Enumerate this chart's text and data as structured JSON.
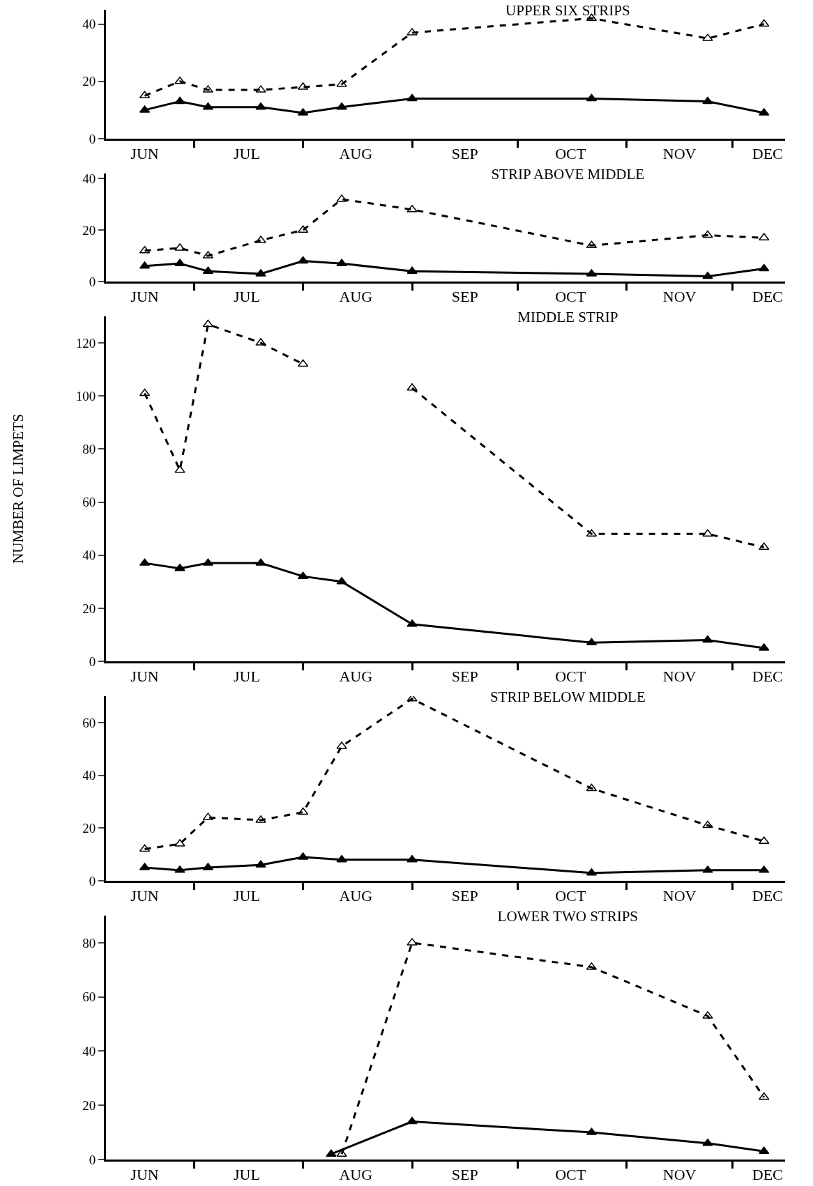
{
  "chart_data": [
    {
      "type": "line",
      "title": "UPPER SIX STRIPS",
      "x": [
        "--06-17",
        "--06-27",
        "--07-05",
        "--07-20",
        "--08-01",
        "--08-12",
        "--09-01",
        "--10-22",
        "--11-24",
        "--12-10"
      ],
      "series": [
        {
          "color": "#000000",
          "line_style": "dashed",
          "values": [
            15,
            20,
            17,
            17,
            18,
            19,
            37,
            42,
            35,
            40
          ]
        },
        {
          "color": "#000000",
          "line_style": "solid",
          "values": [
            10,
            13,
            11,
            11,
            9,
            11,
            14,
            14,
            13,
            9
          ]
        }
      ],
      "marker": "triangle",
      "ylim": [
        0,
        45
      ],
      "yticks": [
        0,
        20,
        40
      ],
      "xlim": [
        "--06-06",
        "--12-16"
      ],
      "xticks": [
        {
          "value": "--06-17",
          "label": "JUN"
        },
        {
          "value": "--07-01",
          "label": null
        },
        {
          "value": "--07-16",
          "label": "JUL"
        },
        {
          "value": "--08-01",
          "label": null
        },
        {
          "value": "--08-16",
          "label": "AUG"
        },
        {
          "value": "--09-01",
          "label": null
        },
        {
          "value": "--09-16",
          "label": "SEP"
        },
        {
          "value": "--10-01",
          "label": null
        },
        {
          "value": "--10-16",
          "label": "OCT"
        },
        {
          "value": "--11-01",
          "label": null
        },
        {
          "value": "--11-16",
          "label": "NOV"
        },
        {
          "value": "--12-01",
          "label": null
        },
        {
          "value": "--12-11",
          "label": "DEC"
        }
      ]
    },
    {
      "type": "line",
      "title": "STRIP ABOVE MIDDLE",
      "x": [
        "--06-17",
        "--06-27",
        "--07-05",
        "--07-20",
        "--08-01",
        "--08-12",
        "--09-01",
        "--10-22",
        "--11-24",
        "--12-10"
      ],
      "series": [
        {
          "color": "#000000",
          "line_style": "dashed",
          "values": [
            12,
            13,
            10,
            16,
            20,
            32,
            28,
            14,
            18,
            17
          ]
        },
        {
          "color": "#000000",
          "line_style": "solid",
          "values": [
            6,
            7,
            4,
            3,
            8,
            7,
            4,
            3,
            2,
            5
          ]
        }
      ],
      "marker": "triangle",
      "ylim": [
        0,
        42
      ],
      "yticks": [
        0,
        20,
        40
      ],
      "xlim": [
        "--06-06",
        "--12-16"
      ],
      "xticks": [
        {
          "value": "--06-17",
          "label": "JUN"
        },
        {
          "value": "--07-01",
          "label": null
        },
        {
          "value": "--07-16",
          "label": "JUL"
        },
        {
          "value": "--08-01",
          "label": null
        },
        {
          "value": "--08-16",
          "label": "AUG"
        },
        {
          "value": "--09-01",
          "label": null
        },
        {
          "value": "--09-16",
          "label": "SEP"
        },
        {
          "value": "--10-01",
          "label": null
        },
        {
          "value": "--10-16",
          "label": "OCT"
        },
        {
          "value": "--11-01",
          "label": null
        },
        {
          "value": "--11-16",
          "label": "NOV"
        },
        {
          "value": "--12-01",
          "label": null
        },
        {
          "value": "--12-11",
          "label": "DEC"
        }
      ]
    },
    {
      "type": "line",
      "title": "MIDDLE STRIP",
      "ylabel": "NUMBER OF LIMPETS",
      "x": [
        "--06-17",
        "--06-27",
        "--07-05",
        "--07-20",
        "--08-01",
        "--08-12",
        "--09-01",
        "--10-22",
        "--11-24",
        "--12-10"
      ],
      "series": [
        {
          "color": "#000000",
          "line_style": "dashed",
          "values": [
            101,
            72,
            127,
            120,
            112,
            null,
            103,
            48,
            48,
            43
          ]
        },
        {
          "color": "#000000",
          "line_style": "solid",
          "values": [
            37,
            35,
            37,
            37,
            32,
            30,
            14,
            7,
            8,
            5
          ]
        }
      ],
      "marker": "triangle",
      "ylim": [
        0,
        130
      ],
      "yticks": [
        0,
        20,
        40,
        60,
        80,
        100,
        120
      ],
      "xlim": [
        "--06-06",
        "--12-16"
      ],
      "xticks": [
        {
          "value": "--06-17",
          "label": "JUN"
        },
        {
          "value": "--07-01",
          "label": null
        },
        {
          "value": "--07-16",
          "label": "JUL"
        },
        {
          "value": "--08-01",
          "label": null
        },
        {
          "value": "--08-16",
          "label": "AUG"
        },
        {
          "value": "--09-01",
          "label": null
        },
        {
          "value": "--09-16",
          "label": "SEP"
        },
        {
          "value": "--10-01",
          "label": null
        },
        {
          "value": "--10-16",
          "label": "OCT"
        },
        {
          "value": "--11-01",
          "label": null
        },
        {
          "value": "--11-16",
          "label": "NOV"
        },
        {
          "value": "--12-01",
          "label": null
        },
        {
          "value": "--12-11",
          "label": "DEC"
        }
      ]
    },
    {
      "type": "line",
      "title": "STRIP BELOW MIDDLE",
      "x": [
        "--06-17",
        "--06-27",
        "--07-05",
        "--07-20",
        "--08-01",
        "--08-12",
        "--09-01",
        "--10-22",
        "--11-24",
        "--12-10"
      ],
      "series": [
        {
          "color": "#000000",
          "line_style": "dashed",
          "values": [
            12,
            14,
            24,
            23,
            26,
            51,
            69,
            35,
            21,
            15
          ]
        },
        {
          "color": "#000000",
          "line_style": "solid",
          "values": [
            5,
            4,
            5,
            6,
            9,
            8,
            8,
            3,
            4,
            4
          ]
        }
      ],
      "marker": "triangle",
      "ylim": [
        0,
        70
      ],
      "yticks": [
        0,
        20,
        40,
        60
      ],
      "xlim": [
        "--06-06",
        "--12-16"
      ],
      "xticks": [
        {
          "value": "--06-17",
          "label": "JUN"
        },
        {
          "value": "--07-01",
          "label": null
        },
        {
          "value": "--07-16",
          "label": "JUL"
        },
        {
          "value": "--08-01",
          "label": null
        },
        {
          "value": "--08-16",
          "label": "AUG"
        },
        {
          "value": "--09-01",
          "label": null
        },
        {
          "value": "--09-16",
          "label": "SEP"
        },
        {
          "value": "--10-01",
          "label": null
        },
        {
          "value": "--10-16",
          "label": "OCT"
        },
        {
          "value": "--11-01",
          "label": null
        },
        {
          "value": "--11-16",
          "label": "NOV"
        },
        {
          "value": "--12-01",
          "label": null
        },
        {
          "value": "--12-11",
          "label": "DEC"
        }
      ]
    },
    {
      "type": "line",
      "title": "LOWER TWO STRIPS",
      "series": [
        {
          "color": "#000000",
          "line_style": "dashed",
          "x": [
            "--08-12",
            "--09-01",
            "--10-22",
            "--11-24",
            "--12-10"
          ],
          "values": [
            2,
            80,
            71,
            53,
            23
          ]
        },
        {
          "color": "#000000",
          "line_style": "solid",
          "x": [
            "--08-09",
            "--09-01",
            "--10-22",
            "--11-24",
            "--12-10"
          ],
          "values": [
            2,
            14,
            10,
            6,
            3
          ]
        }
      ],
      "marker": "triangle",
      "ylim": [
        0,
        90
      ],
      "yticks": [
        0,
        20,
        40,
        60,
        80
      ],
      "xlim": [
        "--06-06",
        "--12-16"
      ],
      "xticks": [
        {
          "value": "--06-17",
          "label": "JUN"
        },
        {
          "value": "--07-01",
          "label": null
        },
        {
          "value": "--07-16",
          "label": "JUL"
        },
        {
          "value": "--08-01",
          "label": null
        },
        {
          "value": "--08-16",
          "label": "AUG"
        },
        {
          "value": "--09-01",
          "label": null
        },
        {
          "value": "--09-16",
          "label": "SEP"
        },
        {
          "value": "--10-01",
          "label": null
        },
        {
          "value": "--10-16",
          "label": "OCT"
        },
        {
          "value": "--11-01",
          "label": null
        },
        {
          "value": "--11-16",
          "label": "NOV"
        },
        {
          "value": "--12-01",
          "label": null
        },
        {
          "value": "--12-11",
          "label": "DEC"
        }
      ]
    }
  ]
}
